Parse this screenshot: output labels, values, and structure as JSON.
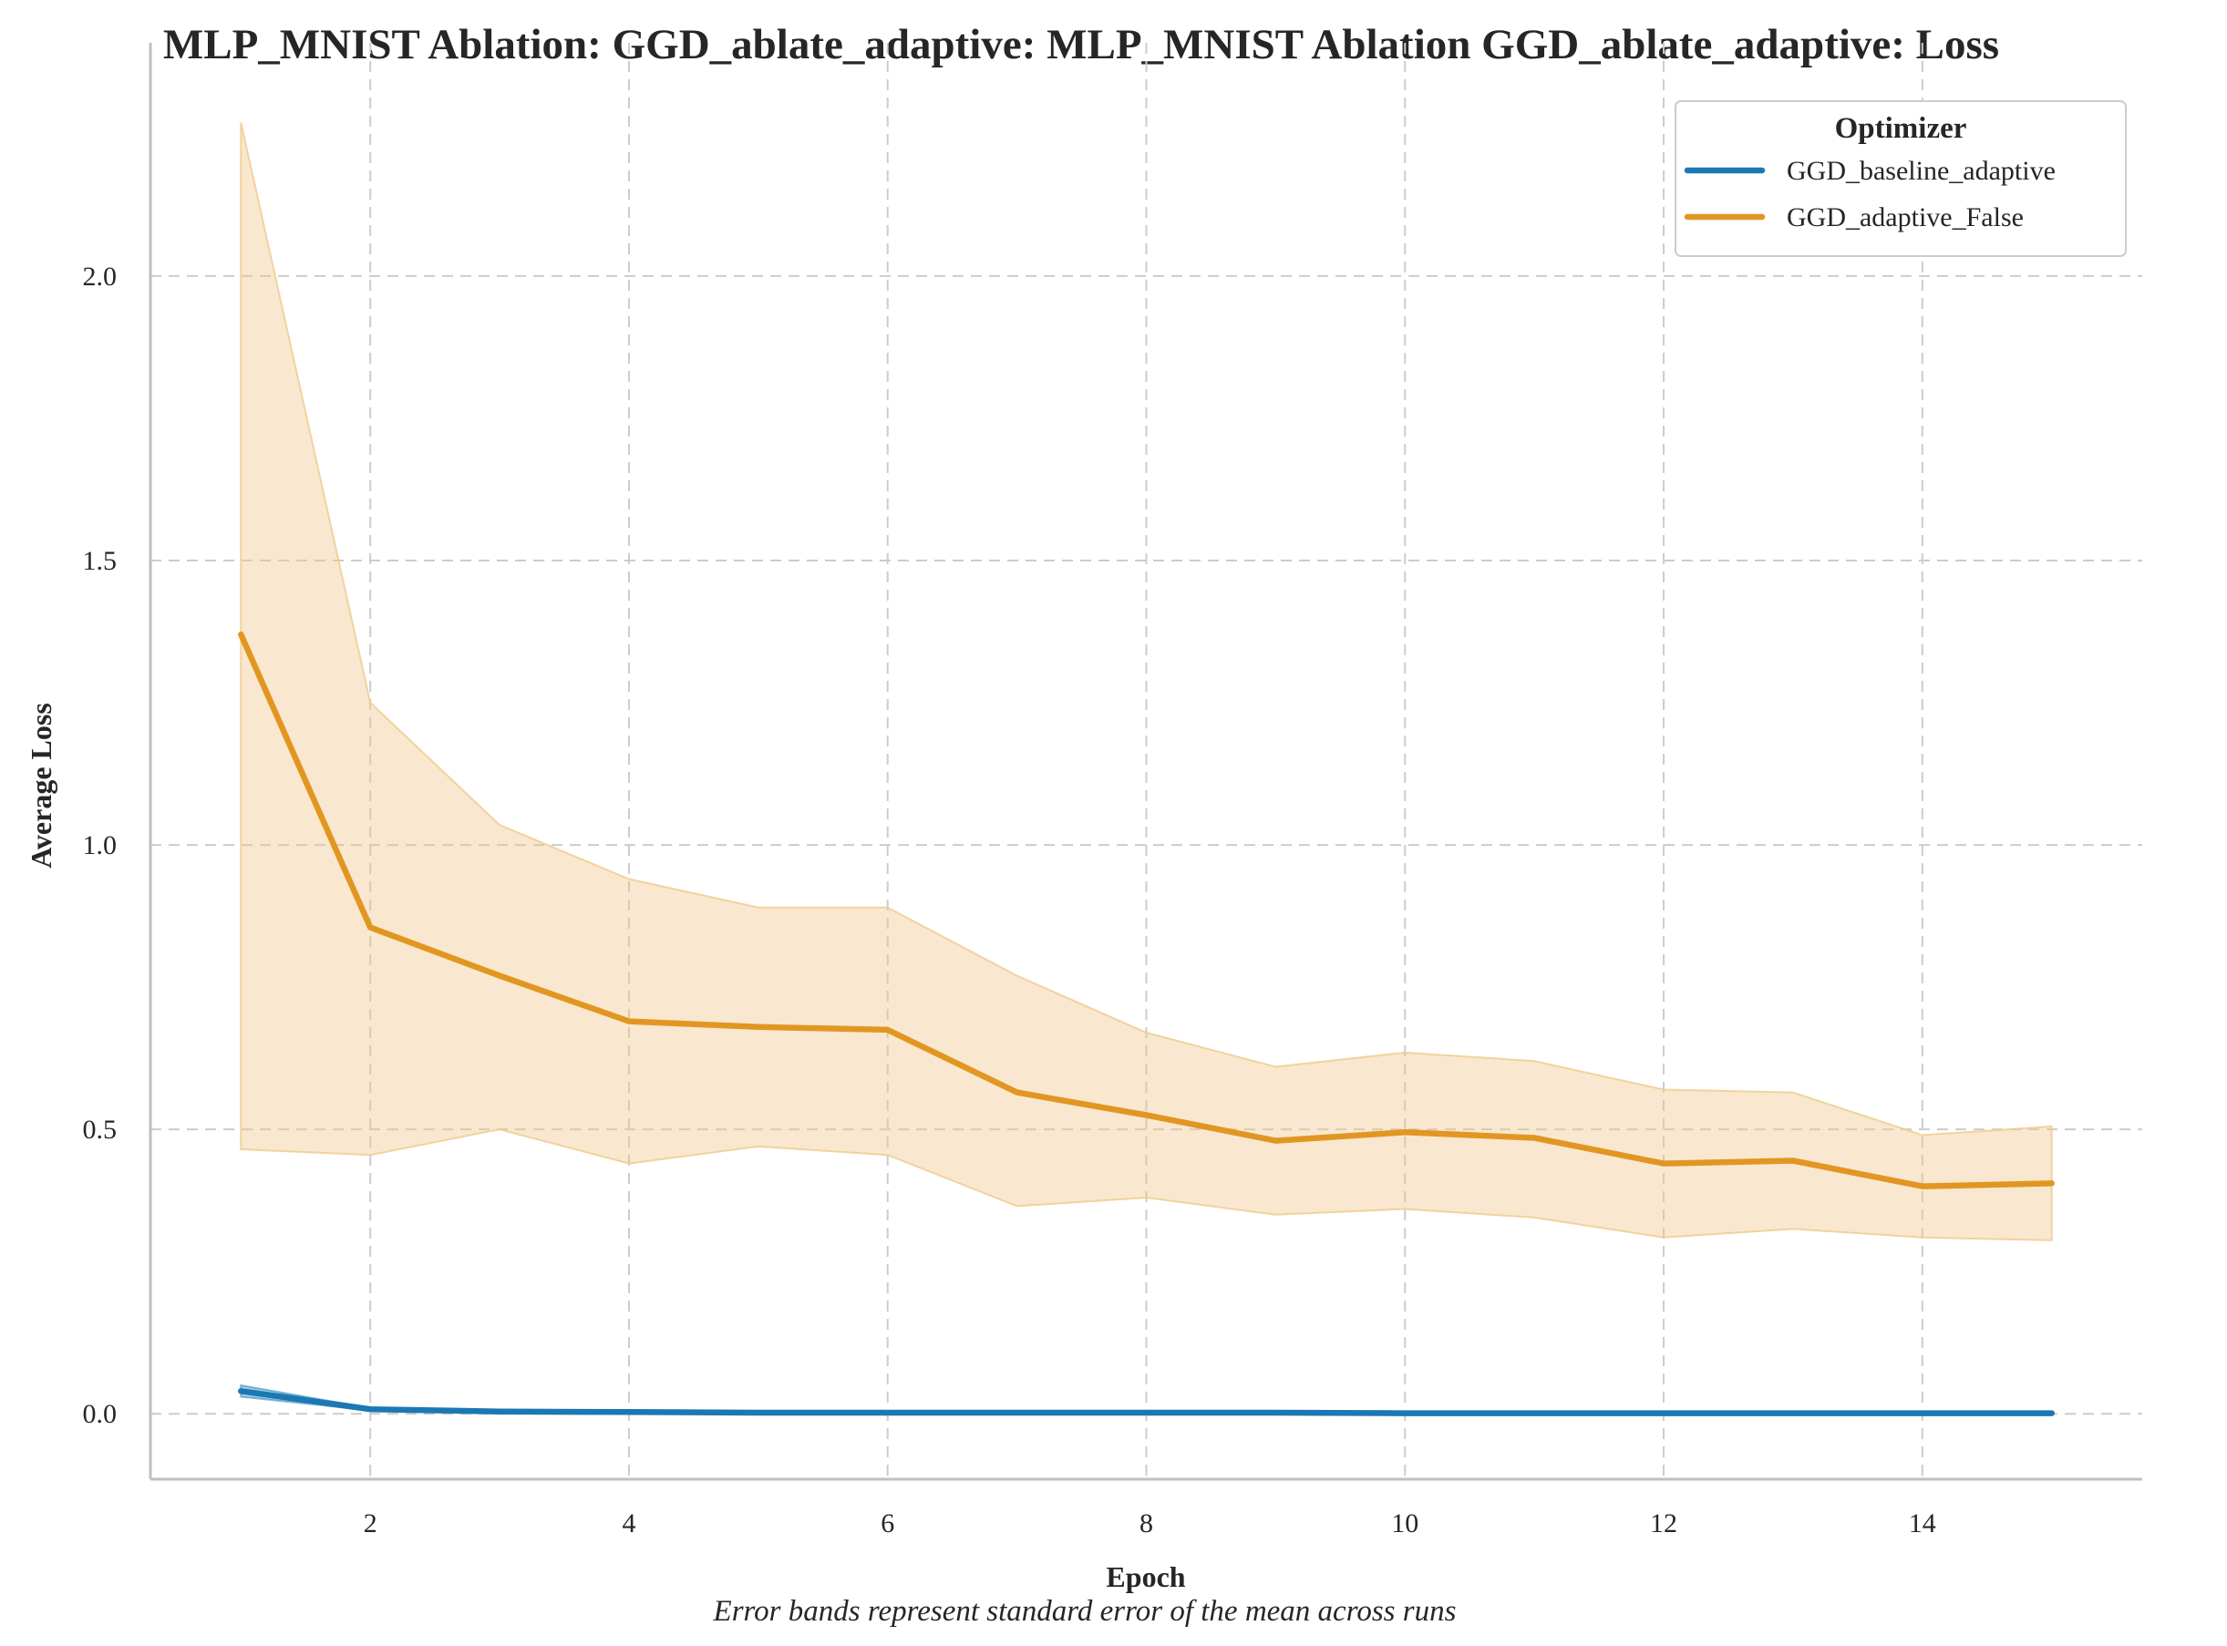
{
  "chart_data": {
    "type": "line",
    "title": "MLP_MNIST Ablation: GGD_ablate_adaptive: MLP_MNIST Ablation GGD_ablate_adaptive: Loss",
    "xlabel": "Epoch",
    "ylabel": "Average Loss",
    "caption": "Error bands represent standard error of the mean across runs",
    "xlim": [
      0.3,
      15.7
    ],
    "ylim": [
      -0.115,
      2.41
    ],
    "x_ticks": [
      2,
      4,
      6,
      8,
      10,
      12,
      14
    ],
    "x_tick_labels": [
      "2",
      "4",
      "6",
      "8",
      "10",
      "12",
      "14"
    ],
    "y_ticks": [
      0.0,
      0.5,
      1.0,
      1.5,
      2.0
    ],
    "y_tick_labels": [
      "0.0",
      "0.5",
      "1.0",
      "1.5",
      "2.0"
    ],
    "grid": true,
    "legend": {
      "title": "Optimizer",
      "placement": "top-right"
    },
    "x": [
      1,
      2,
      3,
      4,
      5,
      6,
      7,
      8,
      9,
      10,
      11,
      12,
      13,
      14,
      15
    ],
    "series": [
      {
        "name": "GGD_baseline_adaptive",
        "color": "#1a78b4",
        "band_color": "#1a78b4",
        "values": [
          0.04,
          0.008,
          0.004,
          0.003,
          0.002,
          0.002,
          0.002,
          0.002,
          0.002,
          0.001,
          0.001,
          0.001,
          0.001,
          0.001,
          0.001
        ],
        "lower": [
          0.03,
          0.006,
          0.003,
          0.002,
          0.002,
          0.001,
          0.001,
          0.001,
          0.001,
          0.001,
          0.001,
          0.001,
          0.001,
          0.001,
          0.001
        ],
        "upper": [
          0.05,
          0.01,
          0.005,
          0.004,
          0.003,
          0.003,
          0.003,
          0.002,
          0.002,
          0.002,
          0.002,
          0.002,
          0.002,
          0.002,
          0.002
        ]
      },
      {
        "name": "GGD_adaptive_False",
        "color": "#e29622",
        "band_color": "#f0c98c",
        "values": [
          1.37,
          0.855,
          0.77,
          0.69,
          0.68,
          0.675,
          0.565,
          0.525,
          0.48,
          0.495,
          0.485,
          0.44,
          0.445,
          0.4,
          0.405
        ],
        "lower": [
          0.465,
          0.455,
          0.5,
          0.44,
          0.47,
          0.455,
          0.365,
          0.38,
          0.35,
          0.36,
          0.345,
          0.31,
          0.325,
          0.31,
          0.305
        ],
        "upper": [
          2.27,
          1.25,
          1.035,
          0.94,
          0.89,
          0.89,
          0.77,
          0.67,
          0.61,
          0.635,
          0.62,
          0.57,
          0.565,
          0.49,
          0.505
        ]
      }
    ]
  }
}
